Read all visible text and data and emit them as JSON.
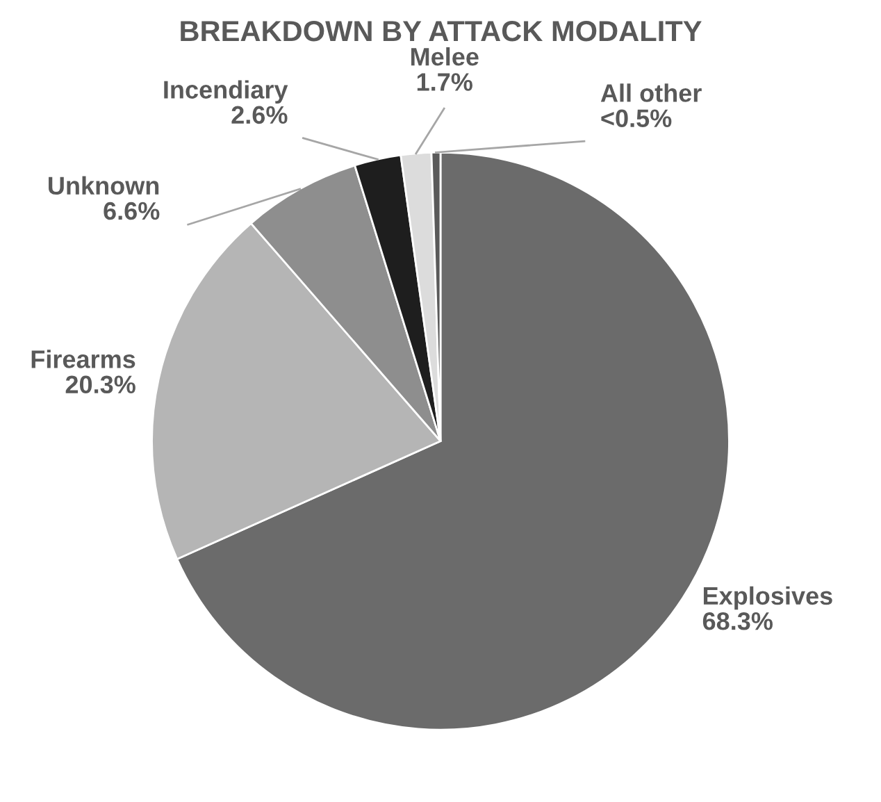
{
  "chart_data": {
    "type": "pie",
    "title": "BREAKDOWN BY ATTACK MODALITY",
    "categories": [
      "Explosives",
      "Firearms",
      "Unknown",
      "Incendiary",
      "Melee",
      "All other"
    ],
    "values": [
      68.3,
      20.3,
      6.6,
      2.6,
      1.7,
      0.5
    ],
    "value_labels": [
      "68.3%",
      "20.3%",
      "6.6%",
      "2.6%",
      "1.7%",
      "<0.5%"
    ],
    "colors": [
      "#6b6b6b",
      "#b5b5b5",
      "#8e8e8e",
      "#1e1e1e",
      "#dcdcdc",
      "#5a5a5a"
    ],
    "legend": false
  }
}
